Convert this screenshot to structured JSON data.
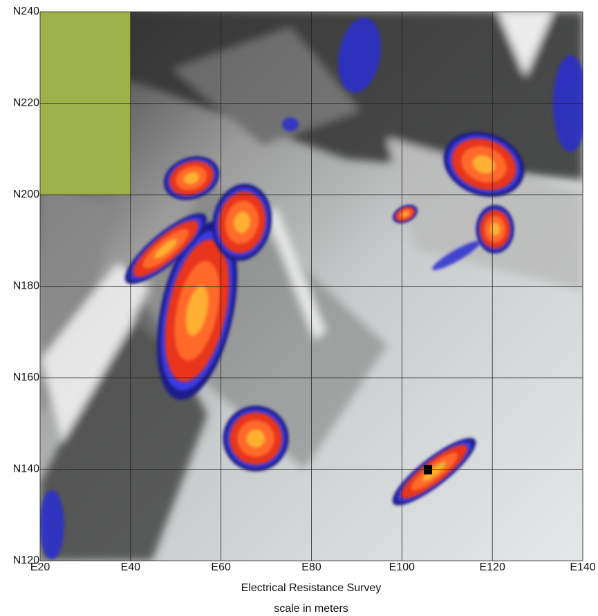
{
  "chart_data": {
    "type": "map",
    "xlabel": "Electrical Resistance Survey",
    "subtitle": "scale in meters",
    "xlim": [
      20,
      140
    ],
    "ylim": [
      120,
      240
    ],
    "xticks": [
      {
        "value": 20,
        "label": "E20"
      },
      {
        "value": 40,
        "label": "E40"
      },
      {
        "value": 60,
        "label": "E60"
      },
      {
        "value": 80,
        "label": "E80"
      },
      {
        "value": 100,
        "label": "E100"
      },
      {
        "value": 120,
        "label": "E120"
      },
      {
        "value": 140,
        "label": "E140"
      }
    ],
    "yticks": [
      {
        "value": 120,
        "label": "N120"
      },
      {
        "value": 140,
        "label": "N140"
      },
      {
        "value": 160,
        "label": "N160"
      },
      {
        "value": 180,
        "label": "N180"
      },
      {
        "value": 200,
        "label": "N200"
      },
      {
        "value": 220,
        "label": "N220"
      },
      {
        "value": 240,
        "label": "N240"
      }
    ],
    "grid": true
  }
}
